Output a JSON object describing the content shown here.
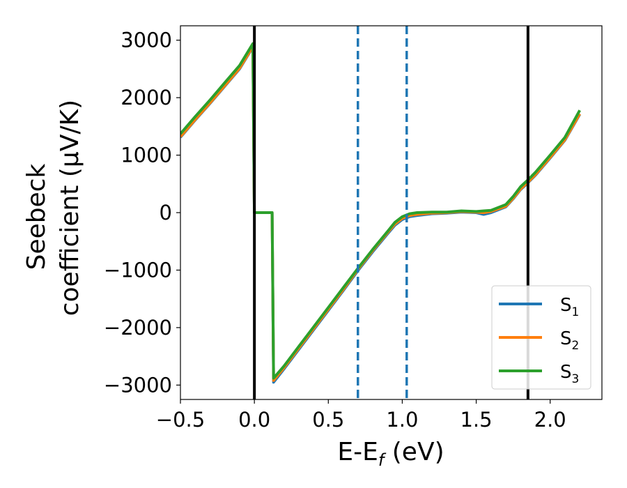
{
  "chart_data": {
    "type": "line",
    "xlabel_main": "E-E",
    "xlabel_sub": "f",
    "xlabel_unit": " (eV)",
    "ylabel_line1": "Seebeck",
    "ylabel_line2": "coefficient  (μV/K)",
    "xlim": [
      -0.5,
      2.35
    ],
    "ylim": [
      -3250,
      3250
    ],
    "xticks": [
      -0.5,
      0.0,
      0.5,
      1.0,
      1.5,
      2.0
    ],
    "xtick_labels": [
      "−0.5",
      "0.0",
      "0.5",
      "1.0",
      "1.5",
      "2.0"
    ],
    "yticks": [
      -3000,
      -2000,
      -1000,
      0,
      1000,
      2000,
      3000
    ],
    "ytick_labels": [
      "−3000",
      "−2000",
      "−1000",
      "0",
      "1000",
      "2000",
      "3000"
    ],
    "grid": false,
    "legend_position": "bottom-right",
    "vertical_lines": [
      {
        "x": 0.0,
        "style": "solid",
        "color": "#000000"
      },
      {
        "x": 0.7,
        "style": "dashed",
        "color": "#1f77b4"
      },
      {
        "x": 1.03,
        "style": "dashed",
        "color": "#1f77b4"
      },
      {
        "x": 1.85,
        "style": "solid",
        "color": "#000000"
      }
    ],
    "series": [
      {
        "name_main": "S",
        "name_sub": "1",
        "color": "#1f77b4",
        "points": [
          [
            -0.5,
            1310
          ],
          [
            -0.4,
            1610
          ],
          [
            -0.3,
            1900
          ],
          [
            -0.2,
            2200
          ],
          [
            -0.1,
            2500
          ],
          [
            -0.01,
            2880
          ],
          [
            0.0,
            0
          ],
          [
            0.12,
            0
          ],
          [
            0.13,
            -2950
          ],
          [
            0.2,
            -2720
          ],
          [
            0.3,
            -2380
          ],
          [
            0.4,
            -2040
          ],
          [
            0.5,
            -1700
          ],
          [
            0.6,
            -1360
          ],
          [
            0.7,
            -1010
          ],
          [
            0.8,
            -680
          ],
          [
            0.9,
            -370
          ],
          [
            0.95,
            -220
          ],
          [
            1.0,
            -120
          ],
          [
            1.05,
            -70
          ],
          [
            1.1,
            -50
          ],
          [
            1.2,
            -20
          ],
          [
            1.3,
            -10
          ],
          [
            1.4,
            10
          ],
          [
            1.5,
            0
          ],
          [
            1.55,
            -30
          ],
          [
            1.6,
            0
          ],
          [
            1.7,
            100
          ],
          [
            1.75,
            240
          ],
          [
            1.8,
            400
          ],
          [
            1.85,
            520
          ],
          [
            1.9,
            650
          ],
          [
            2.0,
            950
          ],
          [
            2.1,
            1260
          ],
          [
            2.2,
            1710
          ]
        ]
      },
      {
        "name_main": "S",
        "name_sub": "2",
        "color": "#ff7f0e",
        "points": [
          [
            -0.5,
            1320
          ],
          [
            -0.4,
            1620
          ],
          [
            -0.3,
            1910
          ],
          [
            -0.2,
            2210
          ],
          [
            -0.1,
            2510
          ],
          [
            -0.01,
            2890
          ],
          [
            0.0,
            0
          ],
          [
            0.12,
            0
          ],
          [
            0.13,
            -2920
          ],
          [
            0.2,
            -2700
          ],
          [
            0.3,
            -2360
          ],
          [
            0.4,
            -2020
          ],
          [
            0.5,
            -1680
          ],
          [
            0.6,
            -1340
          ],
          [
            0.7,
            -990
          ],
          [
            0.8,
            -660
          ],
          [
            0.9,
            -350
          ],
          [
            0.95,
            -200
          ],
          [
            1.0,
            -100
          ],
          [
            1.05,
            -50
          ],
          [
            1.1,
            -30
          ],
          [
            1.2,
            -10
          ],
          [
            1.3,
            0
          ],
          [
            1.4,
            20
          ],
          [
            1.5,
            10
          ],
          [
            1.55,
            0
          ],
          [
            1.6,
            20
          ],
          [
            1.7,
            110
          ],
          [
            1.75,
            250
          ],
          [
            1.8,
            410
          ],
          [
            1.85,
            530
          ],
          [
            1.9,
            660
          ],
          [
            2.0,
            960
          ],
          [
            2.1,
            1270
          ],
          [
            2.2,
            1720
          ]
        ]
      },
      {
        "name_main": "S",
        "name_sub": "3",
        "color": "#2ca02c",
        "points": [
          [
            -0.5,
            1370
          ],
          [
            -0.4,
            1670
          ],
          [
            -0.3,
            1960
          ],
          [
            -0.2,
            2260
          ],
          [
            -0.1,
            2560
          ],
          [
            -0.01,
            2940
          ],
          [
            0.0,
            0
          ],
          [
            0.12,
            0
          ],
          [
            0.13,
            -2880
          ],
          [
            0.2,
            -2670
          ],
          [
            0.3,
            -2330
          ],
          [
            0.4,
            -1990
          ],
          [
            0.5,
            -1650
          ],
          [
            0.6,
            -1310
          ],
          [
            0.7,
            -970
          ],
          [
            0.8,
            -640
          ],
          [
            0.9,
            -330
          ],
          [
            0.95,
            -170
          ],
          [
            1.0,
            -70
          ],
          [
            1.05,
            -20
          ],
          [
            1.1,
            0
          ],
          [
            1.2,
            10
          ],
          [
            1.3,
            10
          ],
          [
            1.4,
            30
          ],
          [
            1.5,
            20
          ],
          [
            1.55,
            30
          ],
          [
            1.6,
            40
          ],
          [
            1.7,
            140
          ],
          [
            1.75,
            280
          ],
          [
            1.8,
            450
          ],
          [
            1.85,
            570
          ],
          [
            1.9,
            700
          ],
          [
            2.0,
            1000
          ],
          [
            2.1,
            1310
          ],
          [
            2.2,
            1780
          ]
        ]
      }
    ]
  }
}
